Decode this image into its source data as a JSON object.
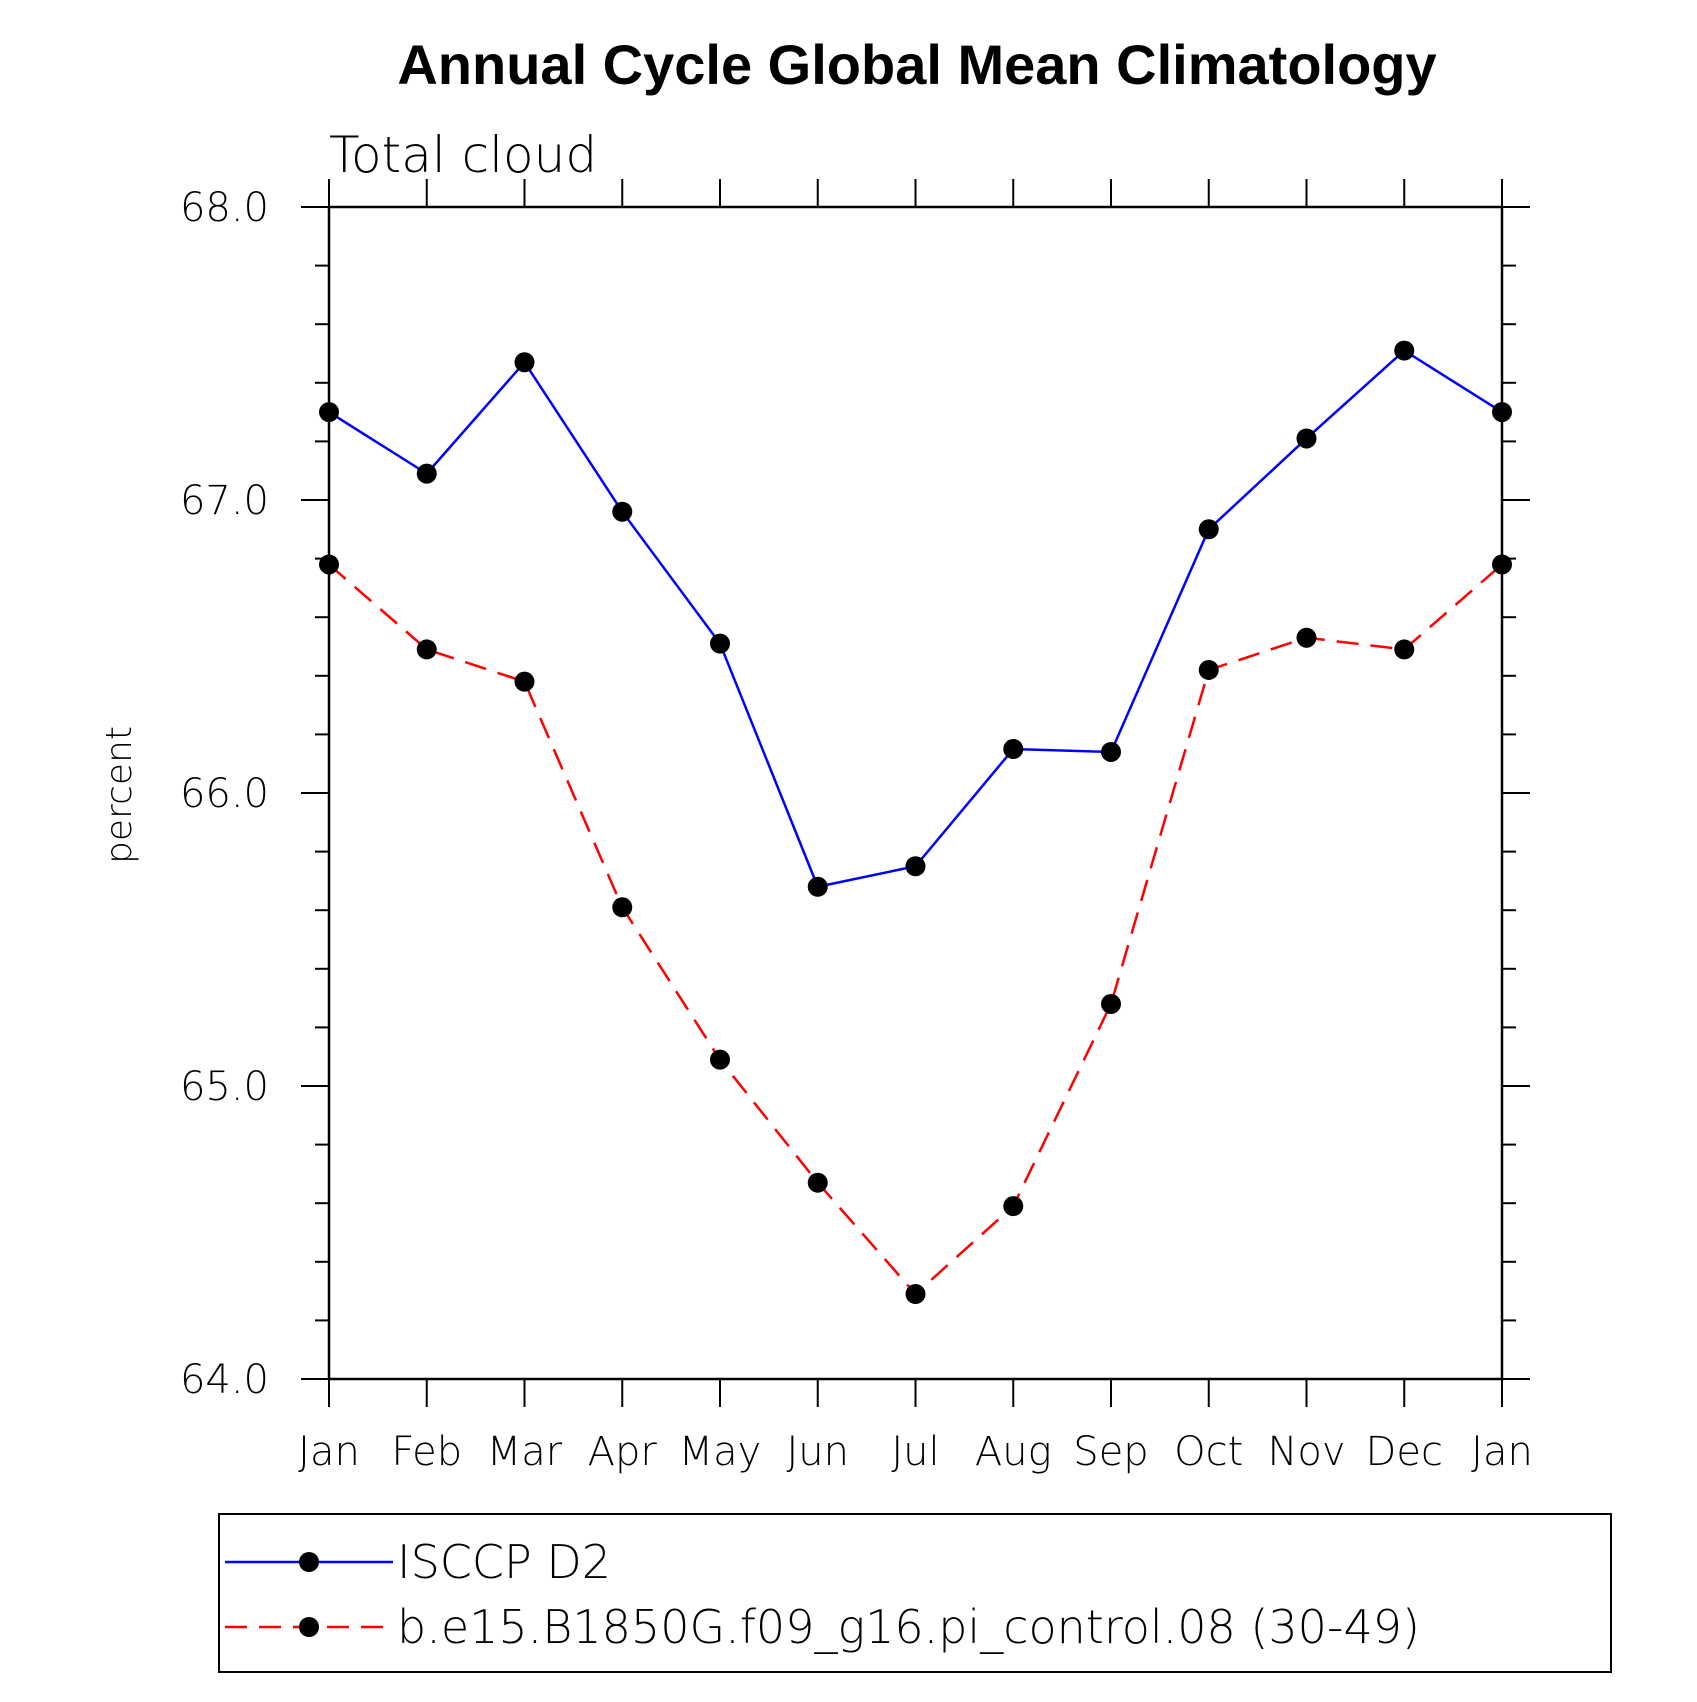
{
  "chart_data": {
    "type": "line",
    "title": "Annual Cycle Global Mean Climatology",
    "subtitle": "Total cloud",
    "xlabel": "",
    "ylabel": "percent",
    "categories": [
      "Jan",
      "Feb",
      "Mar",
      "Apr",
      "May",
      "Jun",
      "Jul",
      "Aug",
      "Sep",
      "Oct",
      "Nov",
      "Dec",
      "Jan"
    ],
    "ylim": [
      64.0,
      68.0
    ],
    "yticks": [
      "64.0",
      "65.0",
      "66.0",
      "67.0",
      "68.0"
    ],
    "series": [
      {
        "name": "ISCCP D2",
        "color": "#0000ff",
        "line_style": "solid",
        "marker": "filled-circle",
        "values": [
          67.3,
          67.09,
          67.47,
          66.96,
          66.51,
          65.68,
          65.75,
          66.15,
          66.14,
          66.9,
          67.21,
          67.51,
          67.3
        ]
      },
      {
        "name": "b.e15.B1850G.f09_g16.pi_control.08 (30-49)",
        "color": "#ff0000",
        "line_style": "dashed",
        "marker": "filled-circle",
        "values": [
          66.78,
          66.49,
          66.38,
          65.61,
          65.09,
          64.67,
          64.29,
          64.59,
          65.28,
          66.42,
          66.53,
          66.49,
          66.78
        ]
      }
    ],
    "grid": false,
    "legend_position": "bottom"
  }
}
